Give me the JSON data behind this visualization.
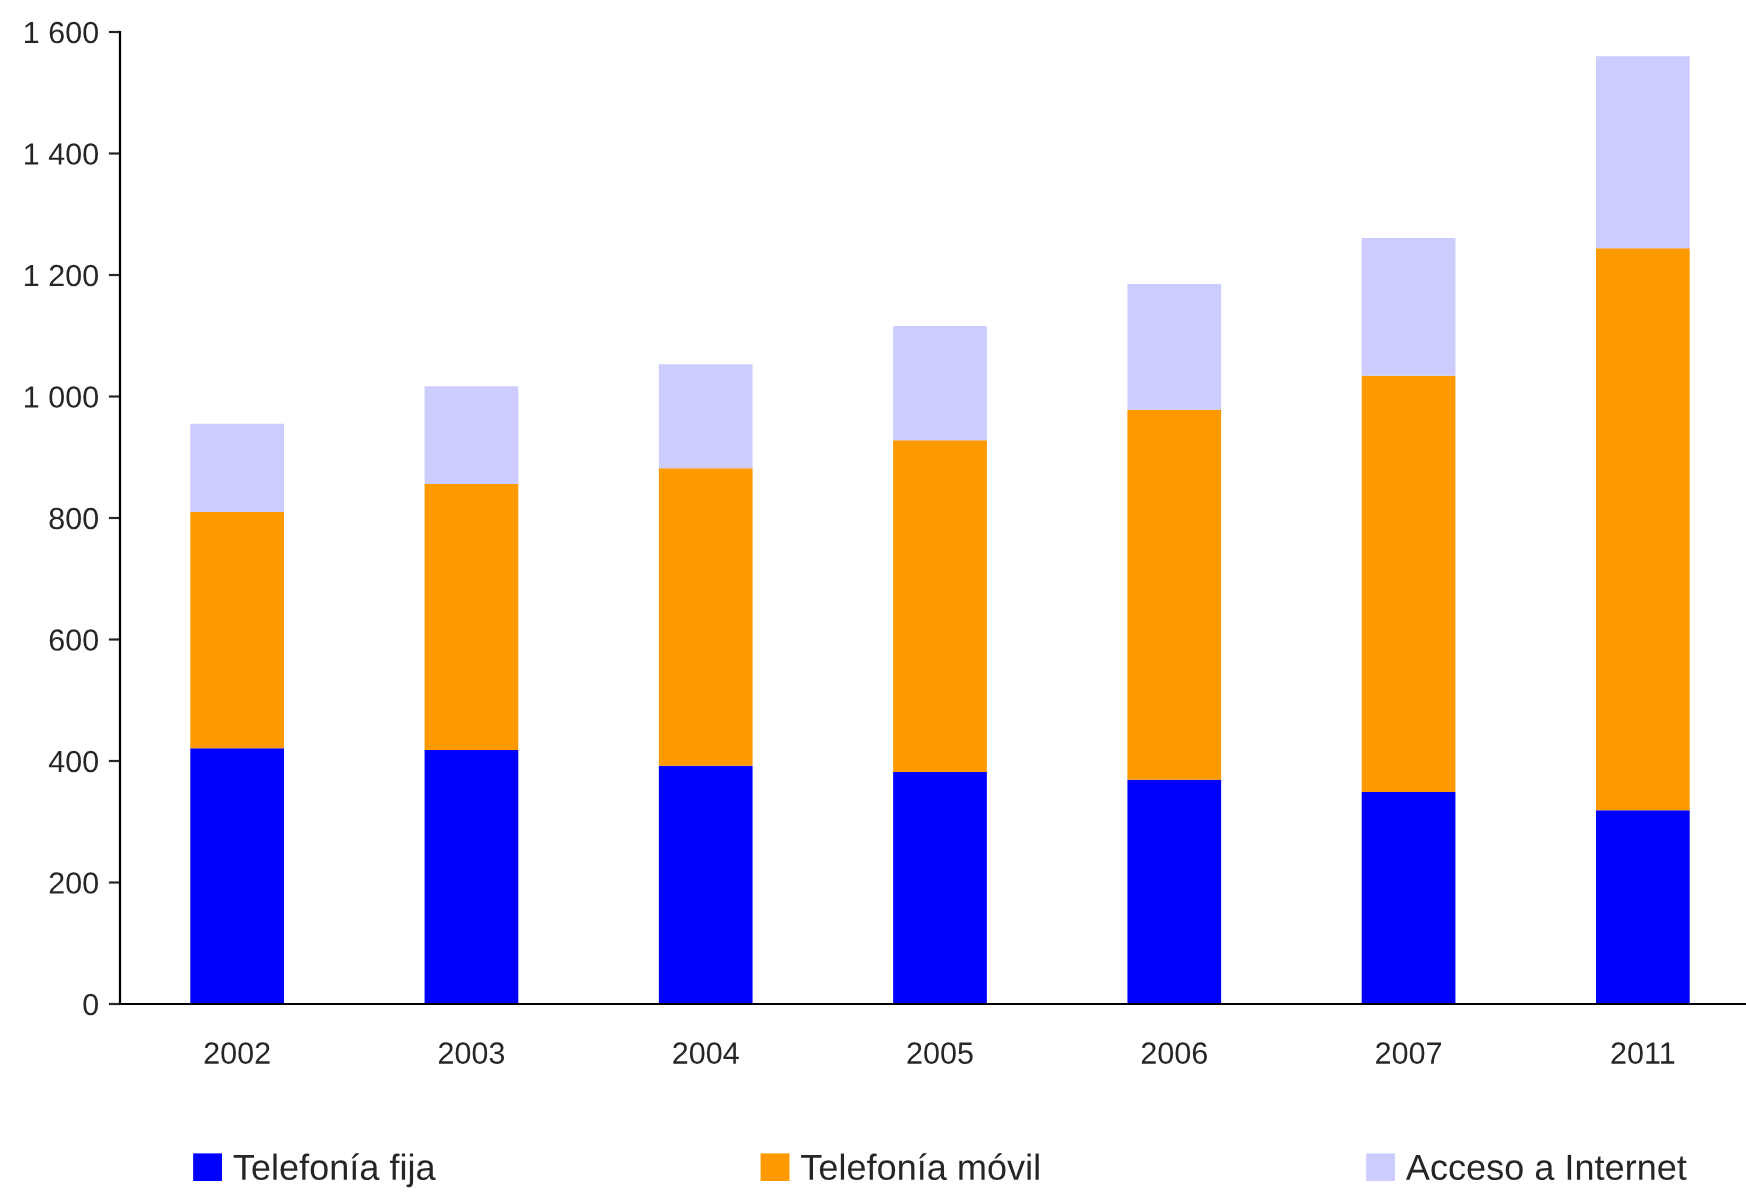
{
  "chart_data": {
    "type": "bar",
    "stacked": true,
    "categories": [
      "2002",
      "2003",
      "2004",
      "2005",
      "2006",
      "2007",
      "2011"
    ],
    "series": [
      {
        "name": "Telefonía fija",
        "color": "#0000ff",
        "values": [
          421,
          418,
          392,
          382,
          369,
          349,
          319
        ]
      },
      {
        "name": "Telefonía móvil",
        "color": "#ff9900",
        "values": [
          389,
          438,
          490,
          546,
          609,
          685,
          925
        ]
      },
      {
        "name": "Acceso a Internet",
        "color": "#ccccff",
        "values": [
          145,
          161,
          171,
          188,
          207,
          227,
          316
        ]
      }
    ],
    "ylim": [
      0,
      1600
    ],
    "yticks": [
      0,
      200,
      400,
      600,
      800,
      {
        "value": 1000,
        "label": "1 000"
      },
      {
        "value": 1200,
        "label": "1 200"
      },
      {
        "value": 1400,
        "label": "1 400"
      },
      {
        "value": 1600,
        "label": "1 600"
      }
    ],
    "grid": false,
    "legend": "bottom"
  }
}
